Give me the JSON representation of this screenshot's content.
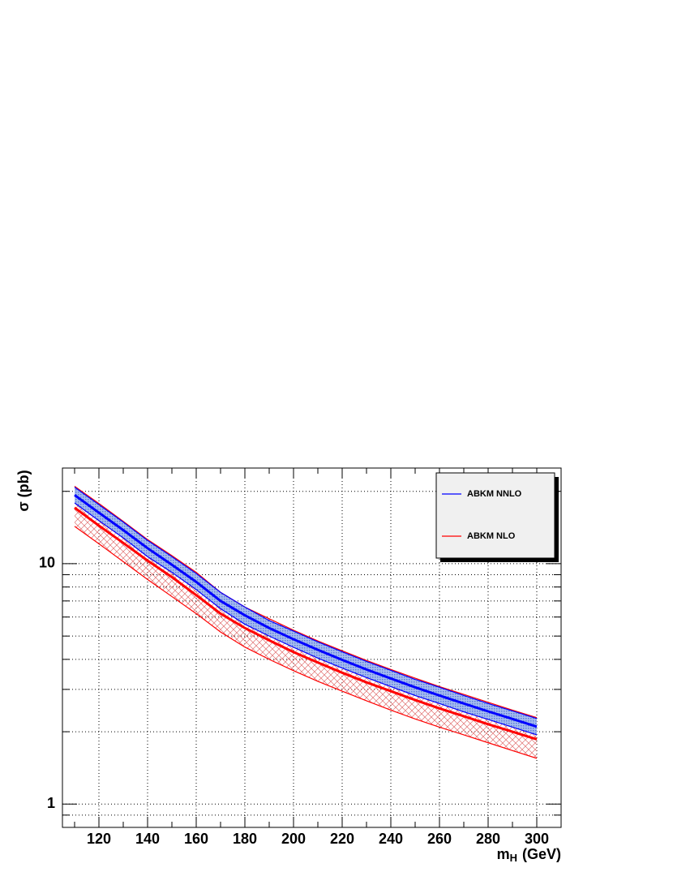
{
  "chart_data": {
    "type": "band-line",
    "ylabel": "σ (pb)",
    "xlabel": {
      "base": "m",
      "subscript": "H",
      "suffix": "(GeV)"
    },
    "x": [
      110,
      120,
      130,
      140,
      150,
      160,
      170,
      180,
      190,
      200,
      210,
      220,
      230,
      240,
      250,
      260,
      270,
      280,
      290,
      300
    ],
    "series": [
      {
        "name": "ABKM NNLO",
        "color": "#0000ff",
        "band_color": "#7f9fe6",
        "values": [
          19.3,
          16.3,
          13.8,
          11.6,
          9.9,
          8.4,
          7.0,
          6.1,
          5.4,
          4.85,
          4.38,
          3.98,
          3.63,
          3.33,
          3.06,
          2.83,
          2.62,
          2.43,
          2.26,
          2.1
        ],
        "upper": [
          20.8,
          17.6,
          14.9,
          12.5,
          10.7,
          9.1,
          7.6,
          6.6,
          5.8,
          5.24,
          4.73,
          4.3,
          3.92,
          3.6,
          3.3,
          3.06,
          2.83,
          2.62,
          2.44,
          2.27
        ],
        "lower": [
          17.9,
          15.1,
          12.8,
          10.7,
          9.2,
          7.8,
          6.5,
          5.6,
          5.0,
          4.49,
          4.05,
          3.68,
          3.36,
          3.08,
          2.83,
          2.62,
          2.42,
          2.25,
          2.09,
          1.94
        ]
      },
      {
        "name": "ABKM NLO",
        "color": "#ff0000",
        "band_color": "#e06060",
        "values": [
          17.1,
          14.4,
          12.2,
          10.3,
          8.8,
          7.4,
          6.2,
          5.4,
          4.8,
          4.29,
          3.88,
          3.52,
          3.21,
          2.95,
          2.71,
          2.5,
          2.32,
          2.15,
          2.0,
          1.86
        ],
        "upper": [
          21.0,
          17.8,
          15.0,
          12.6,
          10.8,
          9.2,
          7.6,
          6.6,
          5.9,
          5.29,
          4.77,
          4.34,
          3.96,
          3.63,
          3.34,
          3.08,
          2.86,
          2.65,
          2.46,
          2.29
        ],
        "lower": [
          14.3,
          12.1,
          10.2,
          8.6,
          7.3,
          6.2,
          5.2,
          4.5,
          4.0,
          3.59,
          3.24,
          2.95,
          2.69,
          2.46,
          2.26,
          2.09,
          1.94,
          1.8,
          1.67,
          1.55
        ]
      }
    ],
    "xlim": [
      105,
      310
    ],
    "xticks": [
      120,
      140,
      160,
      180,
      200,
      220,
      240,
      260,
      280,
      300
    ],
    "xminorticks": [
      110,
      130,
      150,
      170,
      190,
      210,
      230,
      250,
      270,
      290
    ],
    "ylim": [
      0.8,
      25
    ],
    "log_y": true,
    "yticks": [
      1,
      10
    ],
    "yminorticks": [
      0.9,
      2,
      3,
      4,
      5,
      6,
      7,
      8,
      9,
      20
    ],
    "grid": true,
    "legend": "top-right"
  }
}
